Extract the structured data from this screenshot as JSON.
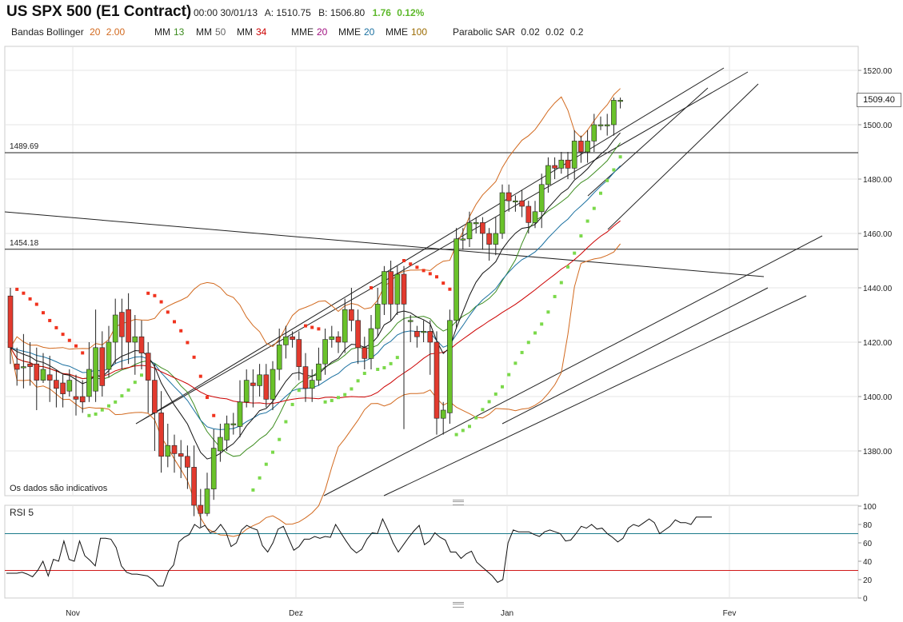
{
  "header": {
    "title": "US SPX 500 (E1 Contract)",
    "time": "00:00 30/01/13",
    "ask": "A: 1510.75",
    "bid": "B: 1506.80",
    "change": "1.76",
    "change_pct": "0.12%",
    "change_color": "#5db82b"
  },
  "indicators": [
    {
      "name": "Bandas Bollinger",
      "params": [
        "20",
        "2.00"
      ],
      "color": "#d2691e"
    },
    {
      "name": "MM",
      "params": [
        "13"
      ],
      "color": "#3c8c1e"
    },
    {
      "name": "MM",
      "params": [
        "50"
      ],
      "color": "#666666"
    },
    {
      "name": "MM",
      "params": [
        "34"
      ],
      "color": "#cc0000"
    },
    {
      "name": "MME",
      "params": [
        "20"
      ],
      "color": "#a01080"
    },
    {
      "name": "MME",
      "params": [
        "20"
      ],
      "color": "#1a70a0"
    },
    {
      "name": "MME",
      "params": [
        "100"
      ],
      "color": "#9a6a00"
    },
    {
      "name": "Parabolic SAR",
      "params": [
        "0.02",
        "0.02",
        "0.2"
      ],
      "color": "#222222"
    }
  ],
  "note": "Os dados são indicativos",
  "last_price": "1509.40",
  "rsi": {
    "title": "RSI 5",
    "ticks": [
      "100",
      "80",
      "60",
      "40",
      "20",
      "0"
    ],
    "levels": [
      70,
      30
    ],
    "values": [
      27,
      27,
      27,
      28,
      26,
      23,
      30,
      40,
      24,
      42,
      40,
      62,
      42,
      40,
      62,
      46,
      41,
      35,
      65,
      65,
      64,
      55,
      35,
      28,
      26,
      26,
      25,
      24,
      20,
      13,
      13,
      29,
      36,
      61,
      66,
      69,
      80,
      76,
      79,
      71,
      73,
      80,
      72,
      56,
      60,
      74,
      79,
      76,
      74,
      57,
      50,
      60,
      75,
      78,
      65,
      52,
      56,
      64,
      64,
      67,
      65,
      67,
      66,
      80,
      71,
      62,
      54,
      49,
      53,
      64,
      71,
      70,
      86,
      74,
      60,
      50,
      58,
      66,
      73,
      79,
      58,
      62,
      71,
      66,
      63,
      50,
      50,
      43,
      48,
      51,
      39,
      34,
      29,
      24,
      17,
      20,
      60,
      74,
      72,
      72,
      72,
      69,
      67,
      72,
      74,
      72,
      70,
      62,
      63,
      70,
      78,
      76,
      80,
      75,
      76,
      70,
      66,
      61,
      65,
      76,
      80,
      78,
      82,
      86,
      82,
      70,
      74,
      78,
      85,
      82,
      82,
      80,
      88,
      88,
      88,
      88
    ]
  },
  "chart_data": {
    "type": "candlestick",
    "ylim": [
      1355,
      1525
    ],
    "y_ticks": [
      "1520.00",
      "1500.00",
      "1480.00",
      "1460.00",
      "1440.00",
      "1420.00",
      "1400.00",
      "1380.00"
    ],
    "x_ticks": [
      "Nov",
      "Dez",
      "Jan",
      "Fev"
    ],
    "horizontal_levels": [
      {
        "label": "1489.69",
        "value": 1489.69
      },
      {
        "label": "1454.18",
        "value": 1454.18
      }
    ],
    "candles": [
      [
        1437,
        1418,
        1440,
        1412
      ],
      [
        1412,
        1410,
        1418,
        1404
      ],
      [
        1411,
        1411,
        1423,
        1403
      ],
      [
        1412,
        1411,
        1420,
        1404
      ],
      [
        1412,
        1406,
        1418,
        1395
      ],
      [
        1406,
        1410,
        1416,
        1405
      ],
      [
        1408,
        1406,
        1415,
        1398
      ],
      [
        1406,
        1403,
        1410,
        1396
      ],
      [
        1405,
        1401,
        1408,
        1396
      ],
      [
        1402,
        1406,
        1410,
        1400
      ],
      [
        1400,
        1399,
        1408,
        1393
      ],
      [
        1400,
        1398,
        1406,
        1394
      ],
      [
        1400,
        1410,
        1420,
        1398
      ],
      [
        1402,
        1418,
        1432,
        1398
      ],
      [
        1418,
        1404,
        1424,
        1400
      ],
      [
        1410,
        1420,
        1426,
        1407
      ],
      [
        1420,
        1430,
        1436,
        1412
      ],
      [
        1431,
        1422,
        1436,
        1410
      ],
      [
        1432,
        1420,
        1438,
        1412
      ],
      [
        1420,
        1422,
        1430,
        1408
      ],
      [
        1422,
        1416,
        1428,
        1410
      ],
      [
        1416,
        1406,
        1420,
        1394
      ],
      [
        1406,
        1394,
        1412,
        1380
      ],
      [
        1394,
        1378,
        1402,
        1372
      ],
      [
        1378,
        1382,
        1390,
        1374
      ],
      [
        1382,
        1379,
        1386,
        1372
      ],
      [
        1379,
        1378,
        1384,
        1370
      ],
      [
        1378,
        1374,
        1382,
        1366
      ],
      [
        1374,
        1360,
        1382,
        1356
      ],
      [
        1360,
        1357,
        1366,
        1352
      ],
      [
        1357,
        1366,
        1372,
        1356
      ],
      [
        1366,
        1381,
        1388,
        1362
      ],
      [
        1380,
        1385,
        1390,
        1376
      ],
      [
        1384,
        1390,
        1393,
        1380
      ],
      [
        1390,
        1390,
        1394,
        1386
      ],
      [
        1389,
        1398,
        1406,
        1385
      ],
      [
        1398,
        1406,
        1410,
        1396
      ],
      [
        1405,
        1404,
        1410,
        1396
      ],
      [
        1404,
        1408,
        1412,
        1400
      ],
      [
        1408,
        1399,
        1412,
        1396
      ],
      [
        1399,
        1410,
        1413,
        1395
      ],
      [
        1410,
        1419,
        1425,
        1406
      ],
      [
        1419,
        1422,
        1426,
        1414
      ],
      [
        1422,
        1421,
        1424,
        1418
      ],
      [
        1421,
        1411,
        1424,
        1406
      ],
      [
        1411,
        1403,
        1416,
        1398
      ],
      [
        1403,
        1406,
        1410,
        1398
      ],
      [
        1406,
        1412,
        1418,
        1404
      ],
      [
        1412,
        1421,
        1425,
        1408
      ],
      [
        1421,
        1422,
        1426,
        1418
      ],
      [
        1422,
        1420,
        1424,
        1416
      ],
      [
        1420,
        1432,
        1436,
        1416
      ],
      [
        1432,
        1428,
        1440,
        1424
      ],
      [
        1428,
        1418,
        1432,
        1412
      ],
      [
        1418,
        1414,
        1422,
        1410
      ],
      [
        1414,
        1425,
        1430,
        1410
      ],
      [
        1425,
        1434,
        1440,
        1422
      ],
      [
        1434,
        1446,
        1448,
        1430
      ],
      [
        1446,
        1434,
        1450,
        1428
      ],
      [
        1434,
        1445,
        1448,
        1430
      ],
      [
        1445,
        1434,
        1448,
        1388
      ],
      [
        1428,
        1428,
        1430,
        1420
      ],
      [
        1424,
        1422,
        1426,
        1418
      ],
      [
        1424,
        1424,
        1428,
        1420
      ],
      [
        1424,
        1420,
        1428,
        1408
      ],
      [
        1420,
        1392,
        1424,
        1386
      ],
      [
        1392,
        1395,
        1398,
        1386
      ],
      [
        1394,
        1428,
        1432,
        1390
      ],
      [
        1428,
        1458,
        1462,
        1425
      ],
      [
        1458,
        1458,
        1462,
        1454
      ],
      [
        1458,
        1464,
        1468,
        1455
      ],
      [
        1464,
        1464,
        1466,
        1460
      ],
      [
        1464,
        1460,
        1466,
        1454
      ],
      [
        1460,
        1456,
        1462,
        1450
      ],
      [
        1456,
        1460,
        1466,
        1452
      ],
      [
        1460,
        1475,
        1478,
        1458
      ],
      [
        1475,
        1472,
        1478,
        1468
      ],
      [
        1472,
        1472,
        1474,
        1468
      ],
      [
        1472,
        1470,
        1476,
        1466
      ],
      [
        1470,
        1464,
        1472,
        1460
      ],
      [
        1464,
        1468,
        1472,
        1462
      ],
      [
        1468,
        1478,
        1482,
        1462
      ],
      [
        1478,
        1485,
        1488,
        1475
      ],
      [
        1485,
        1484,
        1488,
        1480
      ],
      [
        1484,
        1487,
        1490,
        1482
      ],
      [
        1487,
        1484,
        1490,
        1480
      ],
      [
        1484,
        1494,
        1498,
        1480
      ],
      [
        1494,
        1490,
        1496,
        1486
      ],
      [
        1490,
        1494,
        1498,
        1486
      ],
      [
        1494,
        1500,
        1504,
        1490
      ],
      [
        1500,
        1500,
        1503,
        1498
      ],
      [
        1500,
        1500,
        1504,
        1496
      ],
      [
        1500,
        1509,
        1510,
        1496
      ],
      [
        1509,
        1509,
        1510,
        1506
      ]
    ]
  }
}
